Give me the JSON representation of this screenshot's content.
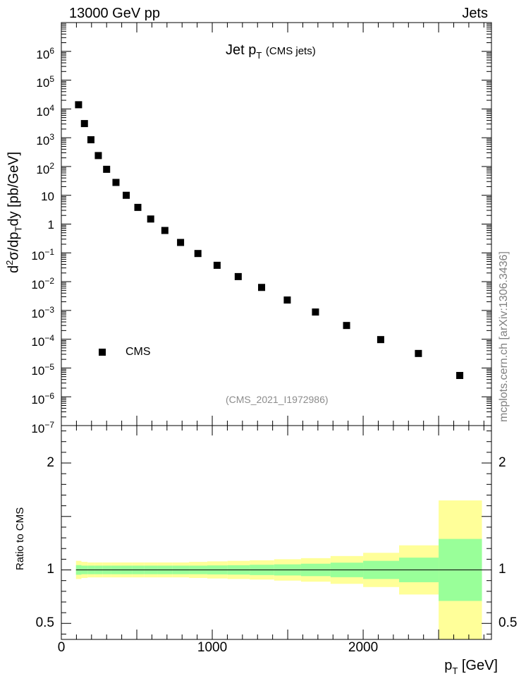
{
  "header": {
    "left": "13000 GeV pp",
    "right": "Jets"
  },
  "plot_title": {
    "main": "Jet p",
    "sub": "T",
    "extra": "(CMS jets)"
  },
  "side_label": "mcplots.cern.ch [arXiv:1306.3436]",
  "analysis_label": "(CMS_2021_I1972986)",
  "chart_data": [
    {
      "type": "scatter",
      "ylabel": "d²σ/dp_T dy [pb/GeV]",
      "ylabel_parts": {
        "d": "d",
        "sup": "2",
        "mid": "σ/dp",
        "sub": "T",
        "end": "dy [pb/GeV]"
      },
      "yscale": "log",
      "ylim": [
        1e-07,
        10000000.0
      ],
      "xlim": [
        0,
        2850
      ],
      "y_ticks": [
        "10^-7",
        "10^-6",
        "10^-5",
        "10^-4",
        "10^-3",
        "10^-2",
        "10^-1",
        "1",
        "10",
        "10^2",
        "10^3",
        "10^4",
        "10^5",
        "10^6"
      ],
      "legend": {
        "entries": [
          "CMS"
        ],
        "placement": "lower-left"
      },
      "series": [
        {
          "name": "CMS",
          "color": "#000000",
          "points": [
            {
              "x": 114,
              "y": 14000
            },
            {
              "x": 153,
              "y": 3100
            },
            {
              "x": 196,
              "y": 850
            },
            {
              "x": 245,
              "y": 240
            },
            {
              "x": 300,
              "y": 80
            },
            {
              "x": 362,
              "y": 28
            },
            {
              "x": 430,
              "y": 10
            },
            {
              "x": 507,
              "y": 3.8
            },
            {
              "x": 592,
              "y": 1.5
            },
            {
              "x": 686,
              "y": 0.6
            },
            {
              "x": 790,
              "y": 0.23
            },
            {
              "x": 905,
              "y": 0.095
            },
            {
              "x": 1032,
              "y": 0.037
            },
            {
              "x": 1172,
              "y": 0.015
            },
            {
              "x": 1327,
              "y": 0.0063
            },
            {
              "x": 1497,
              "y": 0.0023
            },
            {
              "x": 1684,
              "y": 0.00088
            },
            {
              "x": 1890,
              "y": 0.0003
            },
            {
              "x": 2116,
              "y": 9.7e-05
            },
            {
              "x": 2366,
              "y": 3.2e-05
            },
            {
              "x": 2640,
              "y": 5.5e-06
            }
          ]
        }
      ]
    },
    {
      "type": "area",
      "ylabel": "Ratio to CMS",
      "ylim": [
        0.35,
        2.35
      ],
      "xlim": [
        0,
        2850
      ],
      "xlabel": "p_T [GeV]",
      "xlabel_parts": {
        "main": "p",
        "sub": "T",
        "end": " [GeV]"
      },
      "x_tick_labels": [
        "0",
        "1000",
        "2000"
      ],
      "y_tick_labels": [
        "0.5",
        "1",
        "2"
      ],
      "reference_line": 1,
      "band_colors": {
        "outer": "#ffff99",
        "inner": "#99ff99"
      },
      "bins": [
        {
          "lo": 97,
          "hi": 133,
          "inner": [
            0.955,
            1.045
          ],
          "outer": [
            0.915,
            1.085
          ]
        },
        {
          "lo": 133,
          "hi": 174,
          "inner": [
            0.96,
            1.04
          ],
          "outer": [
            0.925,
            1.075
          ]
        },
        {
          "lo": 174,
          "hi": 220,
          "inner": [
            0.96,
            1.04
          ],
          "outer": [
            0.93,
            1.07
          ]
        },
        {
          "lo": 220,
          "hi": 272,
          "inner": [
            0.96,
            1.04
          ],
          "outer": [
            0.93,
            1.07
          ]
        },
        {
          "lo": 272,
          "hi": 330,
          "inner": [
            0.96,
            1.04
          ],
          "outer": [
            0.93,
            1.07
          ]
        },
        {
          "lo": 330,
          "hi": 395,
          "inner": [
            0.96,
            1.04
          ],
          "outer": [
            0.93,
            1.07
          ]
        },
        {
          "lo": 395,
          "hi": 468,
          "inner": [
            0.96,
            1.04
          ],
          "outer": [
            0.93,
            1.07
          ]
        },
        {
          "lo": 468,
          "hi": 548,
          "inner": [
            0.96,
            1.04
          ],
          "outer": [
            0.93,
            1.07
          ]
        },
        {
          "lo": 548,
          "hi": 638,
          "inner": [
            0.96,
            1.04
          ],
          "outer": [
            0.93,
            1.07
          ]
        },
        {
          "lo": 638,
          "hi": 737,
          "inner": [
            0.96,
            1.04
          ],
          "outer": [
            0.93,
            1.07
          ]
        },
        {
          "lo": 737,
          "hi": 846,
          "inner": [
            0.96,
            1.04
          ],
          "outer": [
            0.93,
            1.07
          ]
        },
        {
          "lo": 846,
          "hi": 967,
          "inner": [
            0.96,
            1.04
          ],
          "outer": [
            0.925,
            1.075
          ]
        },
        {
          "lo": 967,
          "hi": 1101,
          "inner": [
            0.958,
            1.042
          ],
          "outer": [
            0.92,
            1.08
          ]
        },
        {
          "lo": 1101,
          "hi": 1248,
          "inner": [
            0.956,
            1.044
          ],
          "outer": [
            0.915,
            1.085
          ]
        },
        {
          "lo": 1248,
          "hi": 1410,
          "inner": [
            0.952,
            1.048
          ],
          "outer": [
            0.91,
            1.09
          ]
        },
        {
          "lo": 1410,
          "hi": 1588,
          "inner": [
            0.948,
            1.052
          ],
          "outer": [
            0.9,
            1.1
          ]
        },
        {
          "lo": 1588,
          "hi": 1784,
          "inner": [
            0.942,
            1.058
          ],
          "outer": [
            0.89,
            1.11
          ]
        },
        {
          "lo": 1784,
          "hi": 2000,
          "inner": [
            0.932,
            1.068
          ],
          "outer": [
            0.87,
            1.13
          ]
        },
        {
          "lo": 2000,
          "hi": 2238,
          "inner": [
            0.915,
            1.085
          ],
          "outer": [
            0.84,
            1.16
          ]
        },
        {
          "lo": 2238,
          "hi": 2500,
          "inner": [
            0.885,
            1.115
          ],
          "outer": [
            0.77,
            1.23
          ]
        },
        {
          "lo": 2500,
          "hi": 2787,
          "inner": [
            0.71,
            1.29
          ],
          "outer": [
            0.35,
            1.65
          ]
        }
      ]
    }
  ]
}
